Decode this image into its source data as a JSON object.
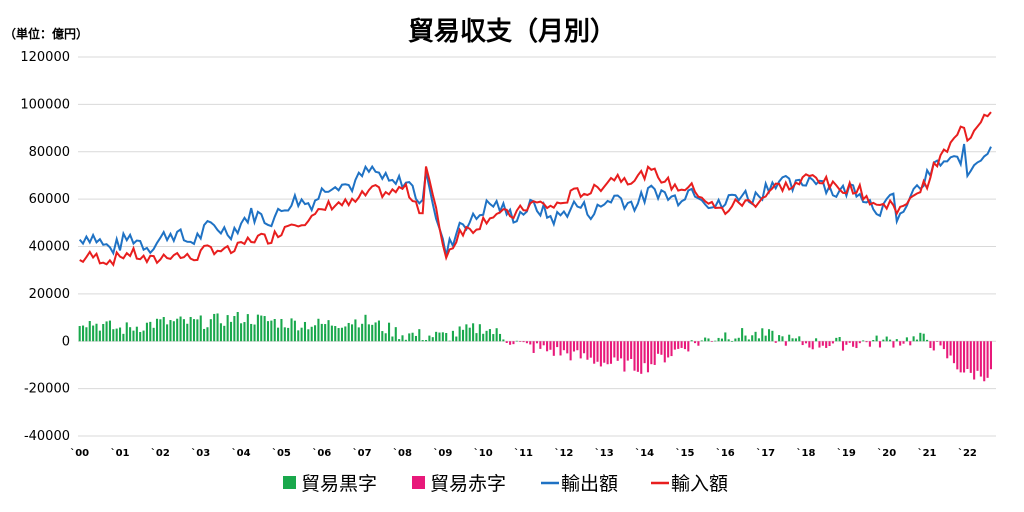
{
  "chart_data": {
    "type": "bar+line",
    "title": "貿易収支（月別）",
    "unit_label": "（単位：億円）",
    "ylim": [
      -40000,
      120000
    ],
    "y_ticks": [
      -40000,
      -20000,
      0,
      20000,
      40000,
      60000,
      80000,
      100000,
      120000
    ],
    "y_tick_labels": [
      "-40000",
      "-20000",
      "0",
      "20000",
      "40000",
      "60000",
      "80000",
      "100000",
      "120000"
    ],
    "x_tick_labels": [
      "`00",
      "`01",
      "`02",
      "`03",
      "`04",
      "`05",
      "`06",
      "`07",
      "`08",
      "`09",
      "`10",
      "`11",
      "`12",
      "`13",
      "`14",
      "`15",
      "`16",
      "`17",
      "`18",
      "`19",
      "`20",
      "`21",
      "`22"
    ],
    "grid": true,
    "legend_position": "bottom",
    "legend": [
      {
        "label": "貿易黒字",
        "kind": "bar",
        "color": "#19A84C"
      },
      {
        "label": "貿易赤字",
        "kind": "bar",
        "color": "#E8197A"
      },
      {
        "label": "輸出額",
        "kind": "line",
        "color": "#1F72C4"
      },
      {
        "label": "輸入額",
        "kind": "line",
        "color": "#E81E1E"
      }
    ],
    "colors": {
      "surplus": "#19A84C",
      "deficit": "#E8197A",
      "exports": "#1F72C4",
      "imports": "#E81E1E",
      "grid": "#D9D9D9"
    },
    "yearly_anchors": {
      "years": [
        2000,
        2001,
        2002,
        2003,
        2004,
        2005,
        2006,
        2007,
        2008,
        2009,
        2010,
        2011,
        2012,
        2013,
        2014,
        2015,
        2016,
        2017,
        2018,
        2019,
        2020,
        2021,
        2022
      ],
      "exports": [
        43000,
        41000,
        43000,
        45000,
        50000,
        55000,
        63000,
        70000,
        68000,
        45000,
        56000,
        55000,
        54000,
        58000,
        61000,
        63000,
        58000,
        65000,
        68000,
        64000,
        57000,
        69000,
        82000
      ],
      "imports": [
        34000,
        36000,
        35000,
        37000,
        40000,
        47000,
        55000,
        61000,
        65000,
        43000,
        51000,
        56000,
        59000,
        67000,
        71000,
        65000,
        55000,
        62000,
        69000,
        65000,
        57000,
        67000,
        95000
      ],
      "balance": [
        9000,
        5000,
        8000,
        8000,
        10000,
        8000,
        7000,
        9000,
        3000,
        2000,
        6000,
        -2000,
        -5000,
        -9000,
        -11000,
        -2000,
        3000,
        2500,
        -1000,
        -1000,
        0,
        1000,
        -14000
      ]
    },
    "series": [
      {
        "name": "輸出額",
        "type": "line",
        "sampling": "monthly from 2000-01 to 2022-08 (272 points)",
        "source": "yearly_anchors.exports"
      },
      {
        "name": "輸入額",
        "type": "line",
        "sampling": "monthly from 2000-01 to 2022-08 (272 points)",
        "source": "yearly_anchors.imports"
      },
      {
        "name": "貿易収支",
        "type": "bar",
        "sampling": "monthly, exports minus imports"
      }
    ]
  }
}
